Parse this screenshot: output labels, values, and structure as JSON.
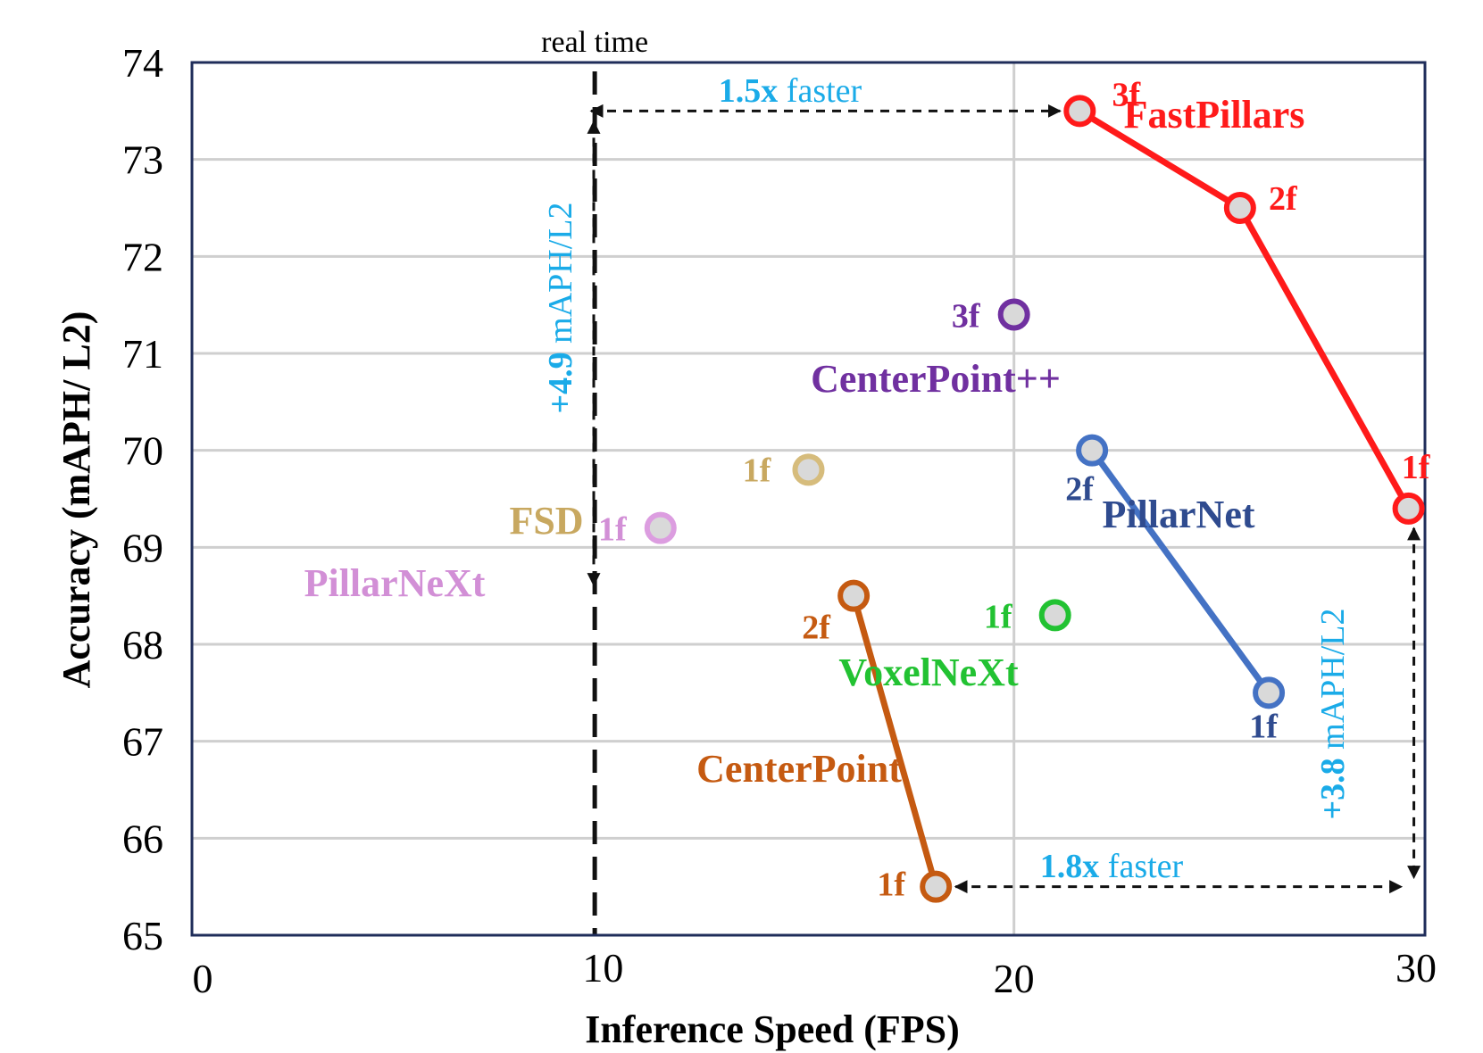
{
  "chart_data": {
    "type": "scatter",
    "title": "",
    "xlabel": "Inference Speed (FPS)",
    "ylabel": "Accuracy  (mAPH/ L2)",
    "xlim": [
      0,
      30
    ],
    "ylim": [
      65,
      74
    ],
    "xticks": [
      "0",
      "10",
      "20",
      "30"
    ],
    "yticks": [
      "65",
      "66",
      "67",
      "68",
      "69",
      "70",
      "71",
      "72",
      "73",
      "74"
    ],
    "grid": "horizontal",
    "realtime_line": {
      "x": 9.8,
      "label": "real time"
    },
    "series": [
      {
        "name": "FastPillars",
        "color": "#ff1a1a",
        "connected": true,
        "points": [
          {
            "x": 21.6,
            "y": 73.5,
            "label": "3f"
          },
          {
            "x": 25.5,
            "y": 72.5,
            "label": "2f"
          },
          {
            "x": 29.6,
            "y": 69.4,
            "label": "1f"
          }
        ]
      },
      {
        "name": "PillarNet",
        "color": "#4472c4",
        "label_color": "#2f4b8f",
        "connected": true,
        "points": [
          {
            "x": 21.9,
            "y": 70.0,
            "label": "2f"
          },
          {
            "x": 26.2,
            "y": 67.5,
            "label": "1f"
          }
        ]
      },
      {
        "name": "CenterPoint",
        "color": "#c55a11",
        "connected": true,
        "points": [
          {
            "x": 16.1,
            "y": 68.5,
            "label": "2f"
          },
          {
            "x": 18.1,
            "y": 65.5,
            "label": "1f"
          }
        ]
      },
      {
        "name": "CenterPoint++",
        "color": "#7030a0",
        "connected": false,
        "points": [
          {
            "x": 20.0,
            "y": 71.4,
            "label": "3f"
          }
        ]
      },
      {
        "name": "VoxelNeXt",
        "color": "#22c232",
        "connected": false,
        "points": [
          {
            "x": 21.0,
            "y": 68.3,
            "label": "1f"
          }
        ]
      },
      {
        "name": "FSD",
        "color": "#d6bc7c",
        "label_color": "#c8a860",
        "connected": false,
        "points": [
          {
            "x": 15.0,
            "y": 69.8,
            "label": "1f"
          }
        ]
      },
      {
        "name": "PillarNeXt",
        "color": "#dc9de0",
        "label_color": "#d28fd6",
        "connected": false,
        "points": [
          {
            "x": 11.4,
            "y": 69.2,
            "label": "1f"
          }
        ]
      }
    ],
    "annotations": [
      {
        "id": "top-speed",
        "bold": "1.5x",
        "text": " faster",
        "color": "#1aabe8"
      },
      {
        "id": "top-acc",
        "bold": "+4.9",
        "text": " mAPH/L2",
        "color": "#1aabe8"
      },
      {
        "id": "bottom-speed",
        "bold": "1.8x",
        "text": " faster",
        "color": "#1aabe8"
      },
      {
        "id": "right-acc",
        "bold": "+3.8",
        "text": " mAPH/L2",
        "color": "#1aabe8"
      }
    ],
    "colors": {
      "frame": "#1f2d5a",
      "grid": "#cfcfcf",
      "marker_fill": "#d9d9d9",
      "annotation": "#1aabe8"
    }
  }
}
